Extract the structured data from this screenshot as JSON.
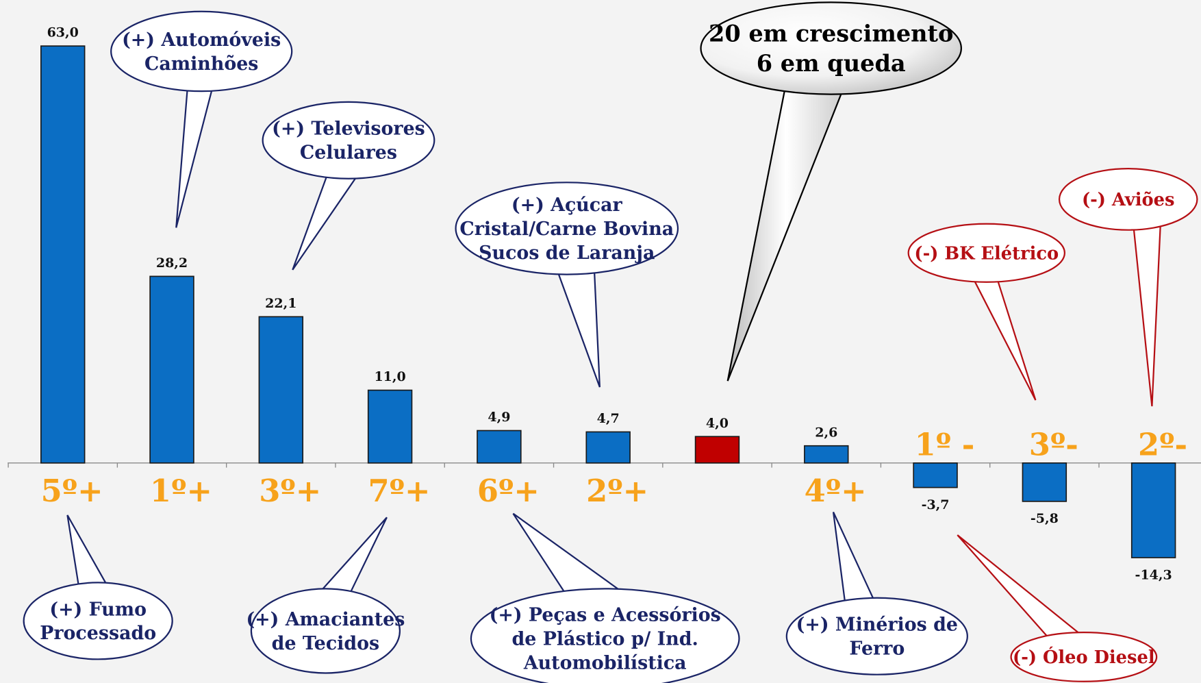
{
  "chart_data": {
    "type": "bar",
    "values": [
      63.0,
      28.2,
      22.1,
      11.0,
      4.9,
      4.7,
      4.0,
      2.6,
      -3.7,
      -5.8,
      -14.3
    ],
    "value_labels": [
      "63,0",
      "28,2",
      "22,1",
      "11,0",
      "4,9",
      "4,7",
      "4,0",
      "2,6",
      "-3,7",
      "-5,8",
      "-14,3"
    ],
    "colors": [
      "#0b6ec4",
      "#0b6ec4",
      "#0b6ec4",
      "#0b6ec4",
      "#0b6ec4",
      "#0b6ec4",
      "#c00000",
      "#0b6ec4",
      "#0b6ec4",
      "#0b6ec4",
      "#0b6ec4"
    ],
    "rank_labels": [
      "5º+",
      "1º+",
      "3º+",
      "7º+",
      "6º+",
      "2º+",
      null,
      "4º+",
      "1º -",
      "3º-",
      "2º-"
    ],
    "rank_color": "#f7a21b",
    "annotations": [
      {
        "lines": [
          "(+) Automóveis",
          "Caminhões"
        ],
        "color": "#1a2466"
      },
      {
        "lines": [
          "(+) Televisores",
          "Celulares"
        ],
        "color": "#1a2466"
      },
      {
        "lines": [
          "(+) Açúcar",
          "Cristal/Carne Bovina",
          "Sucos de Laranja"
        ],
        "color": "#1a2466"
      },
      {
        "lines": [
          "20 em crescimento",
          "6 em queda"
        ],
        "color": "#000000"
      },
      {
        "lines": [
          "(-) BK Elétrico"
        ],
        "color": "#b50f14"
      },
      {
        "lines": [
          "(-) Aviões"
        ],
        "color": "#b50f14"
      },
      {
        "lines": [
          "(+) Fumo",
          "Processado"
        ],
        "color": "#1a2466"
      },
      {
        "lines": [
          "(+) Amaciantes",
          "de Tecidos"
        ],
        "color": "#1a2466"
      },
      {
        "lines": [
          "(+) Peças e Acessórios",
          "de Plástico p/ Ind.",
          "Automobilística"
        ],
        "color": "#1a2466"
      },
      {
        "lines": [
          "(+) Minérios de",
          "Ferro"
        ],
        "color": "#1a2466"
      },
      {
        "lines": [
          "(-) Óleo Diesel"
        ],
        "color": "#b50f14"
      }
    ]
  }
}
